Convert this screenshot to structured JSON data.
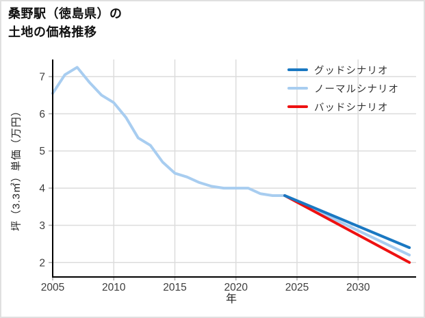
{
  "page": {
    "background": "#ffffff",
    "border_color": "#e0e0e0"
  },
  "header": {
    "title": "桑野駅（徳島県）の\n土地の価格推移"
  },
  "chart_data": {
    "type": "line",
    "title": "桑野駅（徳島県）の土地の価格推移",
    "xlabel": "年",
    "ylabel": "坪（3.3㎡）単価（万円）",
    "xlim": [
      2005,
      2034.75
    ],
    "ylim": [
      1.61,
      7.46
    ],
    "xticks": [
      2005,
      2010,
      2015,
      2020,
      2025,
      2030
    ],
    "yticks": [
      2,
      3,
      4,
      5,
      6,
      7
    ],
    "grid": true,
    "grid_color": "#dcdcdc",
    "axis_color": "#000000",
    "tick_label_color": "#3d3d3d",
    "legend_position": "top-right",
    "series": [
      {
        "name": "グッドシナリオ",
        "color": "#1a78c2",
        "x": [
          2024,
          2034.2
        ],
        "y": [
          3.8,
          2.4
        ]
      },
      {
        "name": "ノーマルシナリオ",
        "color": "#a8cdf0",
        "x": [
          2005,
          2006,
          2007,
          2008,
          2009,
          2010,
          2011,
          2012,
          2013,
          2014,
          2015,
          2016,
          2017,
          2018,
          2019,
          2020,
          2021,
          2022,
          2023,
          2024,
          2034.2
        ],
        "y": [
          6.55,
          7.05,
          7.25,
          6.85,
          6.5,
          6.3,
          5.9,
          5.35,
          5.15,
          4.7,
          4.4,
          4.3,
          4.15,
          4.05,
          4.0,
          4.0,
          4.0,
          3.85,
          3.8,
          3.8,
          2.2
        ]
      },
      {
        "name": "バッドシナリオ",
        "color": "#ee1111",
        "x": [
          2024,
          2034.2
        ],
        "y": [
          3.8,
          2.0
        ]
      }
    ]
  }
}
